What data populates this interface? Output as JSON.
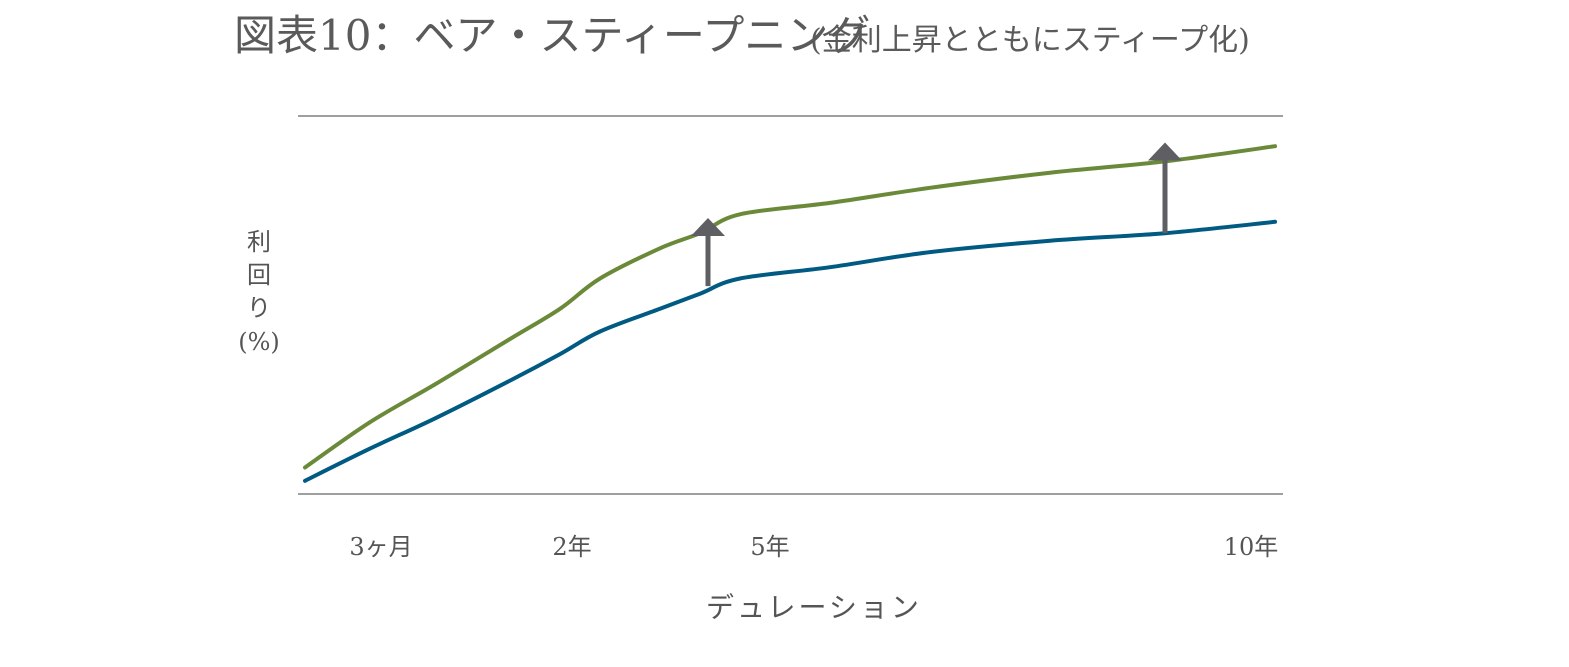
{
  "chart_data": {
    "type": "line",
    "title": "図表10：ベア・スティープニング",
    "subtitle": "(金利上昇とともにスティープ化)",
    "xlabel": "デュレーション",
    "ylabel_lines": [
      "利",
      "回",
      "り",
      "(%)"
    ],
    "x_ticks": [
      {
        "label": "3ヶ月",
        "x": 0.25
      },
      {
        "label": "2年",
        "x": 2
      },
      {
        "label": "5年",
        "x": 5
      },
      {
        "label": "10年",
        "x": 10
      }
    ],
    "xlim": [
      0,
      10.1
    ],
    "ylim": [
      0,
      10
    ],
    "grid": false,
    "colors": {
      "before": "#005a82",
      "after": "#6a8a3a",
      "arrow": "#5f5f63",
      "axis": "#666666"
    },
    "series": [
      {
        "key": "after",
        "x": [
          0,
          0.25,
          0.5,
          1,
          1.5,
          2,
          3,
          4,
          5,
          6,
          7,
          8,
          9,
          10
        ],
        "values": [
          0.7,
          1.9,
          2.9,
          4.1,
          4.9,
          5.7,
          6.5,
          6.9,
          7.4,
          7.7,
          8.1,
          8.5,
          8.8,
          9.2
        ]
      },
      {
        "key": "before",
        "x": [
          0,
          0.25,
          0.5,
          1,
          1.5,
          2,
          3,
          4,
          5,
          6,
          7,
          8,
          9,
          10
        ],
        "values": [
          0.35,
          1.2,
          2.0,
          3.0,
          3.7,
          4.3,
          4.9,
          5.3,
          5.7,
          6.0,
          6.4,
          6.7,
          6.9,
          7.2
        ]
      }
    ],
    "annotations": [
      {
        "type": "arrow",
        "x": 4.2,
        "y_from": 5.5,
        "y_to": 7.3
      },
      {
        "type": "arrow",
        "x": 9.0,
        "y_from": 6.9,
        "y_to": 9.3
      }
    ]
  }
}
